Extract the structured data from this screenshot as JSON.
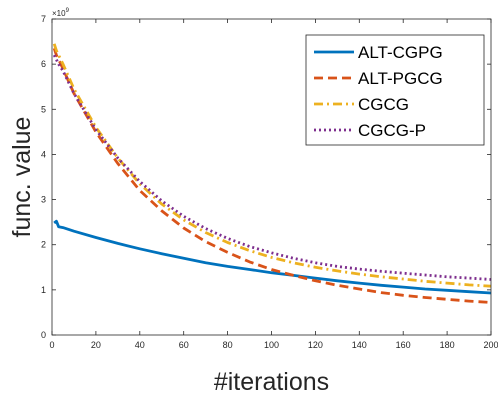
{
  "chart_data": {
    "type": "line",
    "xlabel": "#iterations",
    "ylabel": "func. value",
    "exponent_label": "×10",
    "exponent_power": "9",
    "xlim": [
      0,
      200
    ],
    "ylim": [
      0,
      7
    ],
    "xticks": [
      "0",
      "20",
      "40",
      "60",
      "80",
      "100",
      "120",
      "140",
      "160",
      "180",
      "200"
    ],
    "yticks": [
      "0",
      "1",
      "2",
      "3",
      "4",
      "5",
      "6",
      "7"
    ],
    "grid": false,
    "legend_position": "top-right",
    "x": [
      1,
      2,
      3,
      5,
      10,
      20,
      30,
      40,
      50,
      60,
      70,
      80,
      90,
      100,
      110,
      120,
      130,
      140,
      150,
      160,
      170,
      180,
      190,
      200
    ],
    "series": [
      {
        "name": "ALT-CGPG",
        "color": "#0072BD",
        "style": "solid",
        "values": [
          2.48,
          2.52,
          2.4,
          2.38,
          2.3,
          2.16,
          2.03,
          1.91,
          1.8,
          1.7,
          1.6,
          1.52,
          1.45,
          1.38,
          1.32,
          1.26,
          1.2,
          1.15,
          1.1,
          1.06,
          1.02,
          0.99,
          0.96,
          0.93
        ]
      },
      {
        "name": "ALT-PGCG",
        "color": "#D95319",
        "style": "dashed",
        "values": [
          6.35,
          6.2,
          6.1,
          5.9,
          5.35,
          4.5,
          3.8,
          3.2,
          2.75,
          2.37,
          2.07,
          1.83,
          1.62,
          1.45,
          1.32,
          1.2,
          1.1,
          1.02,
          0.94,
          0.88,
          0.83,
          0.79,
          0.75,
          0.72
        ]
      },
      {
        "name": "CGCG",
        "color": "#EDB120",
        "style": "dashdot",
        "values": [
          6.45,
          6.3,
          6.2,
          6.0,
          5.45,
          4.6,
          3.92,
          3.35,
          2.9,
          2.55,
          2.27,
          2.05,
          1.87,
          1.72,
          1.6,
          1.5,
          1.42,
          1.35,
          1.29,
          1.24,
          1.19,
          1.15,
          1.11,
          1.08
        ]
      },
      {
        "name": "CGCG-P",
        "color": "#7E2F8E",
        "style": "dotted",
        "values": [
          6.2,
          6.1,
          6.0,
          5.85,
          5.35,
          4.55,
          3.92,
          3.4,
          2.97,
          2.63,
          2.36,
          2.14,
          1.96,
          1.82,
          1.7,
          1.6,
          1.52,
          1.46,
          1.41,
          1.37,
          1.33,
          1.29,
          1.26,
          1.23
        ]
      }
    ]
  }
}
